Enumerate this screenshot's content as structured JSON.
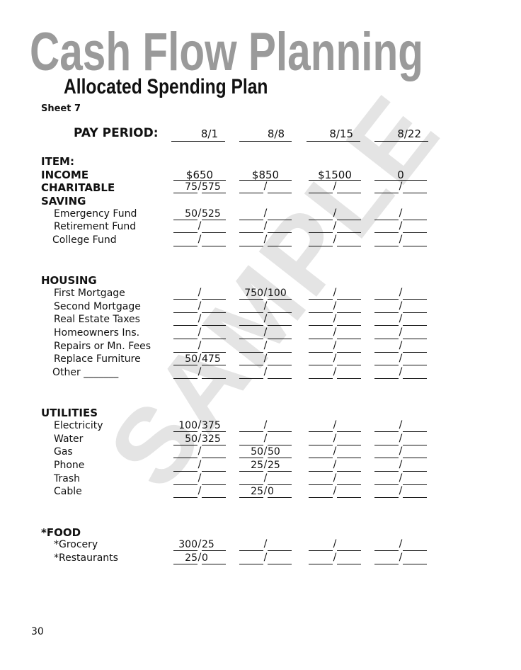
{
  "watermark": "SAMPLE",
  "title": "Cash Flow Planning",
  "subtitle": "Allocated Spending Plan",
  "sheet": "Sheet 7",
  "pay_period_label": "PAY PERIOD:",
  "pay_periods": [
    "8/1",
    "8/8",
    "8/15",
    "8/22"
  ],
  "sections": [
    {
      "rows": [
        {
          "label": "ITEM:",
          "style": "h"
        },
        {
          "label": "INCOME",
          "style": "h",
          "income": [
            "$650",
            "$850",
            "$1500",
            "0"
          ]
        },
        {
          "label": "CHARITABLE",
          "style": "h",
          "cells": [
            [
              "75",
              "575"
            ],
            [
              "",
              ""
            ],
            [
              "",
              ""
            ],
            [
              "",
              ""
            ]
          ]
        },
        {
          "label": "SAVING",
          "style": "h"
        },
        {
          "label": "Emergency Fund",
          "style": "sub",
          "cells": [
            [
              "50",
              "525"
            ],
            [
              "",
              ""
            ],
            [
              "",
              ""
            ],
            [
              "",
              ""
            ]
          ]
        },
        {
          "label": "Retirement Fund",
          "style": "sub",
          "cells": [
            [
              "",
              ""
            ],
            [
              "",
              ""
            ],
            [
              "",
              ""
            ],
            [
              "",
              ""
            ]
          ]
        },
        {
          "label": "College Fund",
          "style": "sub2",
          "cells": [
            [
              "",
              ""
            ],
            [
              "",
              ""
            ],
            [
              "",
              ""
            ],
            [
              "",
              ""
            ]
          ]
        }
      ]
    },
    {
      "rows": [
        {
          "label": "HOUSING",
          "style": "h"
        },
        {
          "label": "First Mortgage",
          "style": "sub",
          "cells": [
            [
              "",
              ""
            ],
            [
              "750",
              "100"
            ],
            [
              "",
              ""
            ],
            [
              "",
              ""
            ]
          ]
        },
        {
          "label": "Second Mortgage",
          "style": "sub",
          "cells": [
            [
              "",
              ""
            ],
            [
              "",
              ""
            ],
            [
              "",
              ""
            ],
            [
              "",
              ""
            ]
          ]
        },
        {
          "label": "Real Estate Taxes",
          "style": "sub",
          "cells": [
            [
              "",
              ""
            ],
            [
              "",
              ""
            ],
            [
              "",
              ""
            ],
            [
              "",
              ""
            ]
          ]
        },
        {
          "label": "Homeowners Ins.",
          "style": "sub",
          "cells": [
            [
              "",
              ""
            ],
            [
              "",
              ""
            ],
            [
              "",
              ""
            ],
            [
              "",
              ""
            ]
          ]
        },
        {
          "label": "Repairs or Mn. Fees",
          "style": "sub",
          "cells": [
            [
              "",
              ""
            ],
            [
              "",
              ""
            ],
            [
              "",
              ""
            ],
            [
              "",
              ""
            ]
          ]
        },
        {
          "label": "Replace Furniture",
          "style": "sub",
          "cells": [
            [
              "50",
              "475"
            ],
            [
              "",
              ""
            ],
            [
              "",
              ""
            ],
            [
              "",
              ""
            ]
          ]
        },
        {
          "label": "Other _______",
          "style": "sub2",
          "cells": [
            [
              "",
              ""
            ],
            [
              "",
              ""
            ],
            [
              "",
              ""
            ],
            [
              "",
              ""
            ]
          ]
        }
      ]
    },
    {
      "rows": [
        {
          "label": "UTILITIES",
          "style": "h"
        },
        {
          "label": "Electricity",
          "style": "sub",
          "cells": [
            [
              "100",
              "375"
            ],
            [
              "",
              ""
            ],
            [
              "",
              ""
            ],
            [
              "",
              ""
            ]
          ]
        },
        {
          "label": "Water",
          "style": "sub",
          "cells": [
            [
              "50",
              "325"
            ],
            [
              "",
              ""
            ],
            [
              "",
              ""
            ],
            [
              "",
              ""
            ]
          ]
        },
        {
          "label": "Gas",
          "style": "sub",
          "cells": [
            [
              "",
              ""
            ],
            [
              "50",
              "50"
            ],
            [
              "",
              ""
            ],
            [
              "",
              ""
            ]
          ]
        },
        {
          "label": "Phone",
          "style": "sub",
          "cells": [
            [
              "",
              ""
            ],
            [
              "25",
              "25"
            ],
            [
              "",
              ""
            ],
            [
              "",
              ""
            ]
          ]
        },
        {
          "label": "Trash",
          "style": "sub",
          "cells": [
            [
              "",
              ""
            ],
            [
              "",
              ""
            ],
            [
              "",
              ""
            ],
            [
              "",
              ""
            ]
          ]
        },
        {
          "label": "Cable",
          "style": "sub",
          "cells": [
            [
              "",
              ""
            ],
            [
              "25",
              "0"
            ],
            [
              "",
              ""
            ],
            [
              "",
              ""
            ]
          ]
        }
      ]
    },
    {
      "rows": [
        {
          "label": "*FOOD",
          "style": "h"
        },
        {
          "label": "*Grocery",
          "style": "sub",
          "cells": [
            [
              "300",
              "25"
            ],
            [
              "",
              ""
            ],
            [
              "",
              ""
            ],
            [
              "",
              ""
            ]
          ]
        },
        {
          "label": "*Restaurants",
          "style": "sub",
          "cells": [
            [
              "25",
              "0"
            ],
            [
              "",
              ""
            ],
            [
              "",
              ""
            ],
            [
              "",
              ""
            ]
          ]
        }
      ]
    }
  ],
  "page_number": "30"
}
